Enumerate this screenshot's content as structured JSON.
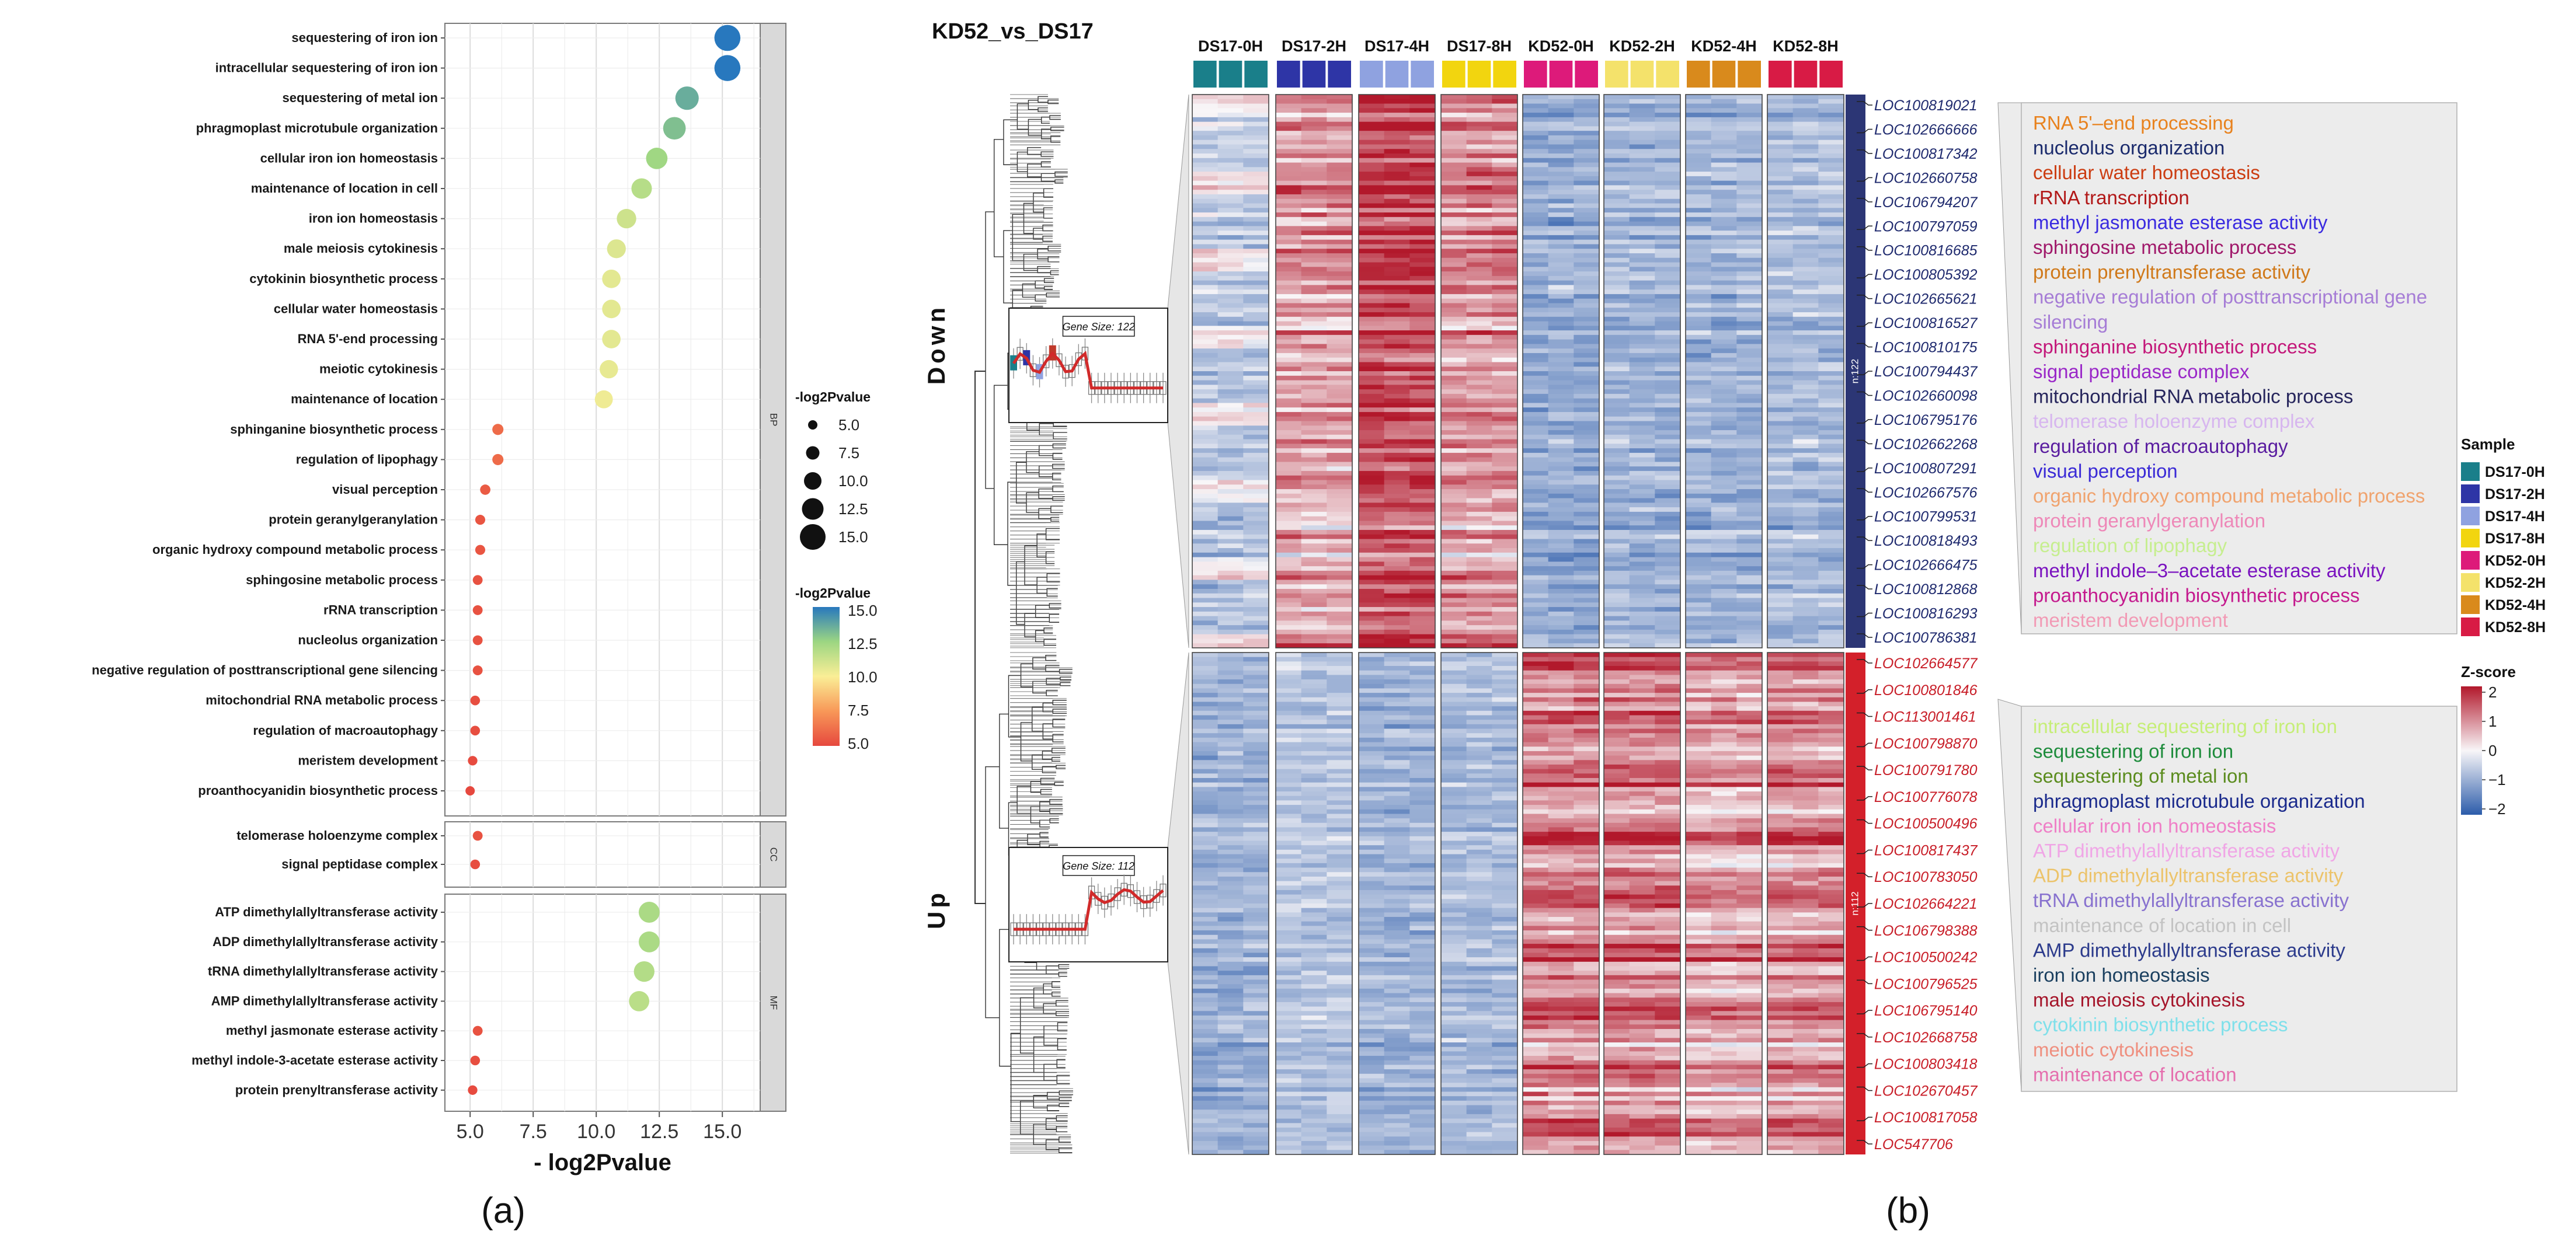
{
  "panel_labels": {
    "a": "(a)",
    "b": "(b)"
  },
  "chart_data": [
    {
      "type": "scatter",
      "subtype": "go-enrichment-dotplot",
      "xlabel": "- log2Pvalue",
      "xlim": [
        4.0,
        16.5
      ],
      "xticks": [
        5.0,
        7.5,
        10.0,
        12.5,
        15.0
      ],
      "tick_labels": [
        "5.0",
        "7.5",
        "10.0",
        "12.5",
        "15.0"
      ],
      "size_legend": {
        "title": "-log2Pvalue",
        "values": [
          5.0,
          7.5,
          10.0,
          12.5,
          15.0
        ],
        "labels": [
          "5.0",
          "7.5",
          "10.0",
          "12.5",
          "15.0"
        ]
      },
      "color_legend": {
        "title": "-log2Pvalue",
        "range": [
          5.0,
          15.0
        ],
        "ticks": [
          "15.0",
          "12.5",
          "10.0",
          "7.5",
          "5.0"
        ]
      },
      "facets": [
        {
          "name": "BP",
          "terms": [
            {
              "label": "sequestering of iron ion",
              "value": 15.2
            },
            {
              "label": "intracellular sequestering of iron ion",
              "value": 15.2
            },
            {
              "label": "sequestering of metal ion",
              "value": 13.6
            },
            {
              "label": "phragmoplast microtubule organization",
              "value": 13.1
            },
            {
              "label": "cellular iron ion homeostasis",
              "value": 12.4
            },
            {
              "label": "maintenance of location in cell",
              "value": 11.8
            },
            {
              "label": "iron ion homeostasis",
              "value": 11.2
            },
            {
              "label": "male meiosis cytokinesis",
              "value": 10.8
            },
            {
              "label": "cytokinin biosynthetic process",
              "value": 10.6
            },
            {
              "label": "cellular water homeostasis",
              "value": 10.6
            },
            {
              "label": "RNA 5'-end processing",
              "value": 10.6
            },
            {
              "label": "meiotic cytokinesis",
              "value": 10.5
            },
            {
              "label": "maintenance of location",
              "value": 10.3
            },
            {
              "label": "sphinganine biosynthetic process",
              "value": 6.1
            },
            {
              "label": "regulation of lipophagy",
              "value": 6.1
            },
            {
              "label": "visual perception",
              "value": 5.6
            },
            {
              "label": "protein geranylgeranylation",
              "value": 5.4
            },
            {
              "label": "organic hydroxy compound metabolic process",
              "value": 5.4
            },
            {
              "label": "sphingosine metabolic process",
              "value": 5.3
            },
            {
              "label": "rRNA transcription",
              "value": 5.3
            },
            {
              "label": "nucleolus organization",
              "value": 5.3
            },
            {
              "label": "negative regulation of posttranscriptional gene silencing",
              "value": 5.3
            },
            {
              "label": "mitochondrial RNA metabolic process",
              "value": 5.2
            },
            {
              "label": "regulation of macroautophagy",
              "value": 5.2
            },
            {
              "label": "meristem development",
              "value": 5.1
            },
            {
              "label": "proanthocyanidin biosynthetic process",
              "value": 5.0
            }
          ]
        },
        {
          "name": "CC",
          "terms": [
            {
              "label": "telomerase holoenzyme complex",
              "value": 5.3
            },
            {
              "label": "signal peptidase complex",
              "value": 5.2
            }
          ]
        },
        {
          "name": "MF",
          "terms": [
            {
              "label": "ATP dimethylallyltransferase activity",
              "value": 12.1
            },
            {
              "label": "ADP dimethylallyltransferase activity",
              "value": 12.1
            },
            {
              "label": "tRNA dimethylallyltransferase activity",
              "value": 11.9
            },
            {
              "label": "AMP dimethylallyltransferase activity",
              "value": 11.7
            },
            {
              "label": "methyl jasmonate esterase activity",
              "value": 5.3
            },
            {
              "label": "methyl indole-3-acetate esterase activity",
              "value": 5.2
            },
            {
              "label": "protein prenyltransferase activity",
              "value": 5.1
            }
          ]
        }
      ]
    },
    {
      "type": "heatmap",
      "title": "KD52_vs_DS17",
      "columns": [
        "DS17-0H",
        "DS17-2H",
        "DS17-4H",
        "DS17-8H",
        "KD52-0H",
        "KD52-2H",
        "KD52-4H",
        "KD52-8H"
      ],
      "replicates_per_group": 3,
      "sample_colors": {
        "DS17-0H": "#1a7f8a",
        "DS17-2H": "#2e35a6",
        "DS17-4H": "#8fa2e0",
        "DS17-8H": "#f2d50f",
        "KD52-0H": "#dd1a7a",
        "KD52-2H": "#f4e26b",
        "KD52-4H": "#d98a1c",
        "KD52-8H": "#d81b45"
      },
      "row_groups": [
        {
          "name": "Down",
          "size_label": "n:122",
          "gene_size_label": "Gene Size: 122",
          "bar_color": "#2c3675",
          "genes": [
            "LOC100819021",
            "LOC102666666",
            "LOC100817342",
            "LOC102660758",
            "LOC106794207",
            "LOC100797059",
            "LOC100816685",
            "LOC100805392",
            "LOC102665621",
            "LOC100816527",
            "LOC100810175",
            "LOC100794437",
            "LOC102660098",
            "LOC106795176",
            "LOC102662268",
            "LOC100807291",
            "LOC102667576",
            "LOC100799531",
            "LOC100818493",
            "LOC102666475",
            "LOC100812868",
            "LOC100816293",
            "LOC100786381"
          ],
          "pattern": [
            -0.6,
            0.7,
            1.4,
            0.8,
            -0.9,
            -0.8,
            -0.8,
            -0.7
          ]
        },
        {
          "name": "Up",
          "size_label": "n:112",
          "gene_size_label": "Gene Size: 112",
          "bar_color": "#d3202a",
          "genes": [
            "LOC102664577",
            "LOC100801846",
            "LOC113001461",
            "LOC100798870",
            "LOC100791780",
            "LOC100776078",
            "LOC100500496",
            "LOC100817437",
            "LOC100783050",
            "LOC102664221",
            "LOC106798388",
            "LOC100500242",
            "LOC100796525",
            "LOC106795140",
            "LOC102668758",
            "LOC100803418",
            "LOC102670457",
            "LOC100817058",
            "LOC547706"
          ],
          "pattern": [
            -0.8,
            -0.6,
            -0.8,
            -0.7,
            0.9,
            0.9,
            0.6,
            0.8
          ]
        }
      ],
      "zscore_legend": {
        "title": "Z-score",
        "ticks": [
          "2",
          "1",
          "0",
          "−1",
          "−2"
        ],
        "range": [
          -2,
          2
        ]
      },
      "sample_legend_title": "Sample",
      "go_annotations": {
        "down": [
          {
            "text": "RNA 5'–end processing",
            "color": "#e8821e"
          },
          {
            "text": "nucleolus organization",
            "color": "#1a2a6c"
          },
          {
            "text": "cellular water homeostasis",
            "color": "#cc3d12"
          },
          {
            "text": "rRNA transcription",
            "color": "#b21818"
          },
          {
            "text": "methyl jasmonate esterase activity",
            "color": "#3a2be0"
          },
          {
            "text": "sphingosine metabolic process",
            "color": "#a0186a"
          },
          {
            "text": "protein prenyltransferase activity",
            "color": "#d0791a"
          },
          {
            "text": "negative regulation of posttranscriptional gene",
            "color": "#a67dd6"
          },
          {
            "text": "silencing",
            "color": "#a67dd6"
          },
          {
            "text": "sphinganine biosynthetic process",
            "color": "#c3187a"
          },
          {
            "text": "signal peptidase complex",
            "color": "#9a28c8"
          },
          {
            "text": "mitochondrial RNA metabolic process",
            "color": "#26255c"
          },
          {
            "text": "telomerase holoenzyme complex",
            "color": "#d7b6ef"
          },
          {
            "text": "regulation of macroautophagy",
            "color": "#5a1da0"
          },
          {
            "text": "visual perception",
            "color": "#3a2ad6"
          },
          {
            "text": "organic hydroxy compound metabolic process",
            "color": "#f0a36e"
          },
          {
            "text": "protein geranylgeranylation",
            "color": "#ee88b8"
          },
          {
            "text": "regulation of lipophagy",
            "color": "#c6ee8f"
          },
          {
            "text": "methyl indole–3–acetate esterase activity",
            "color": "#7a12bf"
          },
          {
            "text": "proanthocyanidin biosynthetic process",
            "color": "#c41a8e"
          },
          {
            "text": "meristem development",
            "color": "#f29ab5"
          }
        ],
        "up": [
          {
            "text": "intracellular sequestering of iron ion",
            "color": "#c6ee78"
          },
          {
            "text": "sequestering of iron ion",
            "color": "#1e8c3c"
          },
          {
            "text": "sequestering of metal ion",
            "color": "#5b8c1e"
          },
          {
            "text": "phragmoplast microtubule organization",
            "color": "#1a2a8c"
          },
          {
            "text": "cellular iron ion homeostasis",
            "color": "#ef7fc7"
          },
          {
            "text": "ATP dimethylallyltransferase  activity",
            "color": "#f0a6e6"
          },
          {
            "text": "ADP dimethylallyltransferase  activity",
            "color": "#ecc36a"
          },
          {
            "text": "tRNA dimethylallyltransferase  activity",
            "color": "#8872cf"
          },
          {
            "text": "maintenance of location in cell",
            "color": "#c3c3c3"
          },
          {
            "text": "AMP dimethylallyltransferase  activity",
            "color": "#2c3b8c"
          },
          {
            "text": "iron ion homeostasis",
            "color": "#1a3f5f"
          },
          {
            "text": "male meiosis cytokinesis",
            "color": "#a5152a"
          },
          {
            "text": "cytokinin biosynthetic process",
            "color": "#7fe0ea"
          },
          {
            "text": "meiotic cytokinesis",
            "color": "#ef8f7f"
          },
          {
            "text": "maintenance of location",
            "color": "#e56fae"
          }
        ]
      }
    }
  ]
}
